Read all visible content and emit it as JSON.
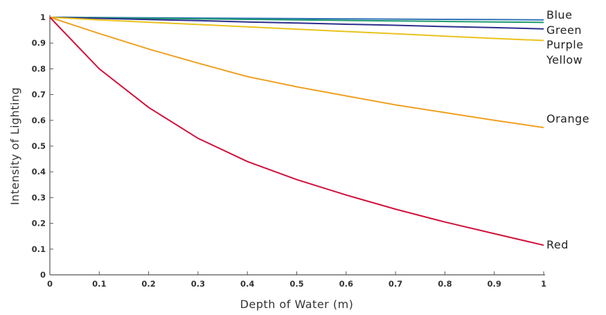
{
  "chart_data": {
    "type": "line",
    "title": "",
    "xlabel": "Depth of Water (m)",
    "ylabel": "Intensity of Lighting",
    "xlim": [
      0,
      1
    ],
    "ylim": [
      0,
      1
    ],
    "x_ticks": [
      0,
      0.1,
      0.2,
      0.3,
      0.4,
      0.5,
      0.6,
      0.7,
      0.8,
      0.9,
      1
    ],
    "x_tick_labels": [
      "0",
      "0.1",
      "0.2",
      "0.3",
      "0.4",
      "0.5",
      "0.6",
      "0.7",
      "0.8",
      "0.9",
      "1"
    ],
    "y_ticks": [
      0,
      0.1,
      0.2,
      0.3,
      0.4,
      0.5,
      0.6,
      0.7,
      0.8,
      0.9,
      1
    ],
    "y_tick_labels": [
      "0",
      "0.1",
      "0.2",
      "0.3",
      "0.4",
      "0.5",
      "0.6",
      "0.7",
      "0.8",
      "0.9",
      "1"
    ],
    "grid": false,
    "legend": "labels at right end of each line",
    "x": [
      0,
      0.1,
      0.2,
      0.3,
      0.4,
      0.5,
      0.6,
      0.7,
      0.8,
      0.9,
      1
    ],
    "series": [
      {
        "name": "Blue",
        "color": "#2f73b8",
        "values": [
          1,
          0.999,
          0.998,
          0.997,
          0.996,
          0.995,
          0.994,
          0.993,
          0.992,
          0.991,
          0.99
        ]
      },
      {
        "name": "Green",
        "color": "#1e9a6e",
        "values": [
          1,
          0.998,
          0.996,
          0.994,
          0.992,
          0.99,
          0.988,
          0.986,
          0.984,
          0.982,
          0.98
        ]
      },
      {
        "name": "Purple",
        "color": "#2b2e8c",
        "values": [
          1,
          0.996,
          0.991,
          0.987,
          0.982,
          0.978,
          0.973,
          0.969,
          0.964,
          0.96,
          0.955
        ]
      },
      {
        "name": "Yellow",
        "color": "#e8c21c",
        "values": [
          1,
          0.99,
          0.981,
          0.972,
          0.963,
          0.954,
          0.945,
          0.936,
          0.927,
          0.918,
          0.91
        ]
      },
      {
        "name": "Orange",
        "color": "#f0a020",
        "values": [
          1,
          0.937,
          0.877,
          0.822,
          0.77,
          0.73,
          0.695,
          0.66,
          0.63,
          0.6,
          0.572
        ]
      },
      {
        "name": "Red",
        "color": "#d0103a",
        "values": [
          1,
          0.8,
          0.65,
          0.53,
          0.44,
          0.37,
          0.31,
          0.255,
          0.205,
          0.16,
          0.115
        ]
      }
    ]
  }
}
